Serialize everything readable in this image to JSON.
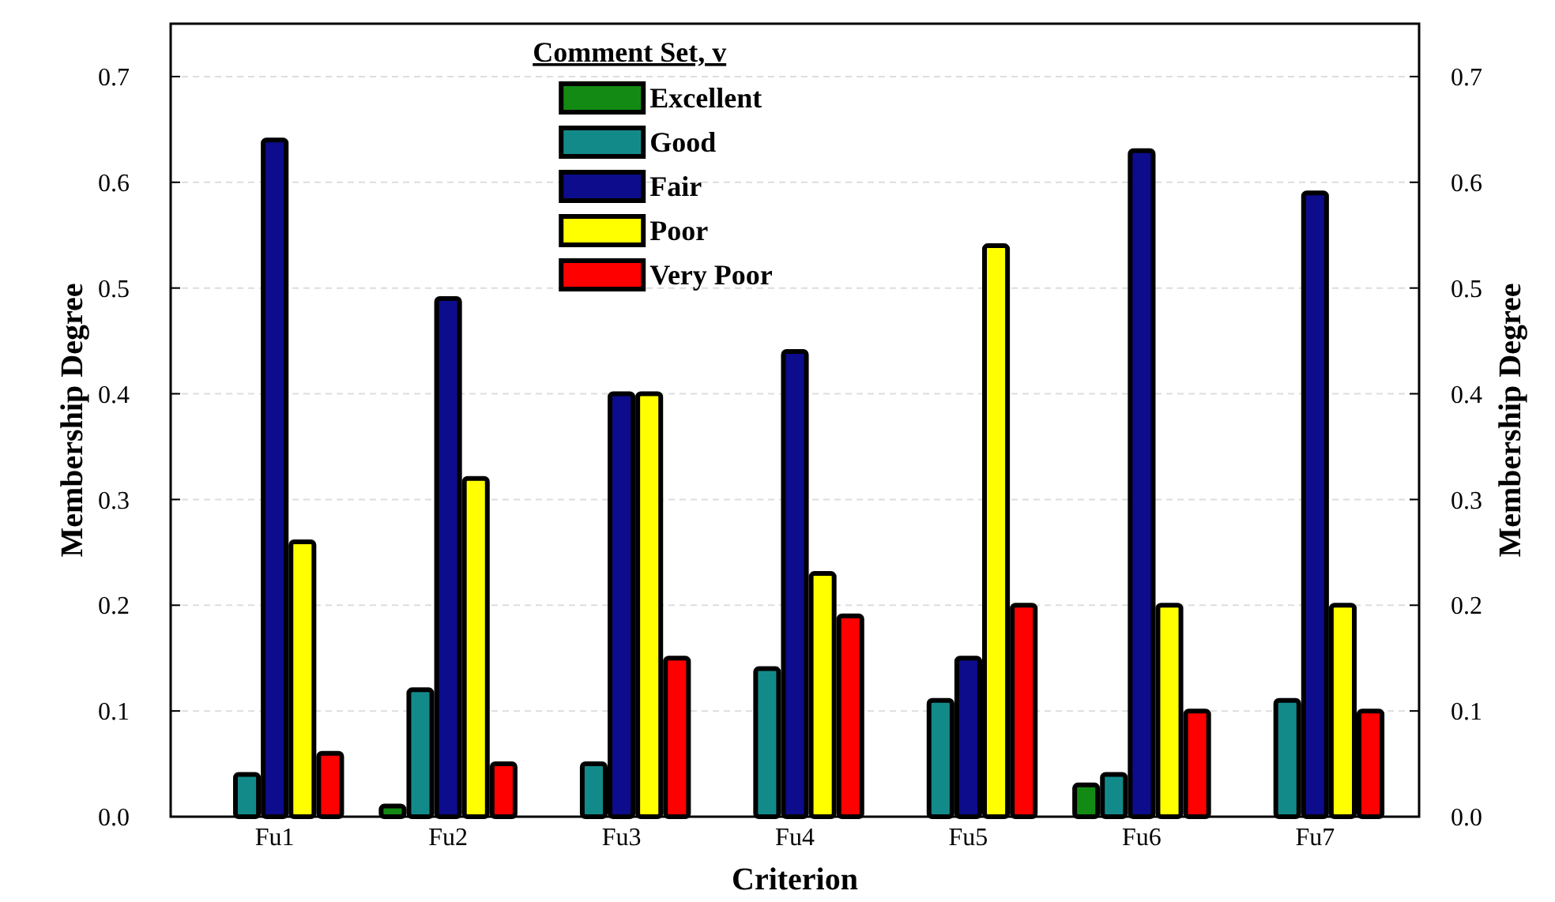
{
  "chart_data": {
    "type": "bar",
    "xlabel": "Criterion",
    "ylabel": "Membership Degree",
    "y2label": "Membership Degree",
    "legend_title": "Comment Set, v",
    "categories": [
      "Fu1",
      "Fu2",
      "Fu3",
      "Fu4",
      "Fu5",
      "Fu6",
      "Fu7"
    ],
    "series": [
      {
        "name": "Excellent",
        "color": "#138a13",
        "values": [
          0,
          0.01,
          0,
          0,
          0,
          0.03,
          0
        ]
      },
      {
        "name": "Good",
        "color": "#138a8a",
        "values": [
          0.04,
          0.12,
          0.05,
          0.14,
          0.11,
          0.04,
          0.11
        ]
      },
      {
        "name": "Fair",
        "color": "#0c0c8c",
        "values": [
          0.64,
          0.49,
          0.4,
          0.44,
          0.15,
          0.63,
          0.59
        ]
      },
      {
        "name": "Poor",
        "color": "#ffff00",
        "values": [
          0.26,
          0.32,
          0.4,
          0.23,
          0.54,
          0.2,
          0.2
        ]
      },
      {
        "name": "Very Poor",
        "color": "#ff0000",
        "values": [
          0.06,
          0.05,
          0.15,
          0.19,
          0.2,
          0.1,
          0.1
        ]
      }
    ],
    "ylim": [
      0,
      0.75
    ],
    "yticks": [
      {
        "value": 0,
        "label": "0.0"
      },
      0.1,
      0.2,
      0.3,
      0.4,
      0.5,
      0.6,
      0.7
    ],
    "y2lim": [
      0,
      0.75
    ],
    "y2ticks": [
      {
        "value": 0,
        "label": "0.0"
      },
      0.1,
      0.2,
      0.3,
      0.4,
      0.5,
      0.6,
      0.7
    ],
    "grid": "y",
    "legend": "top"
  }
}
